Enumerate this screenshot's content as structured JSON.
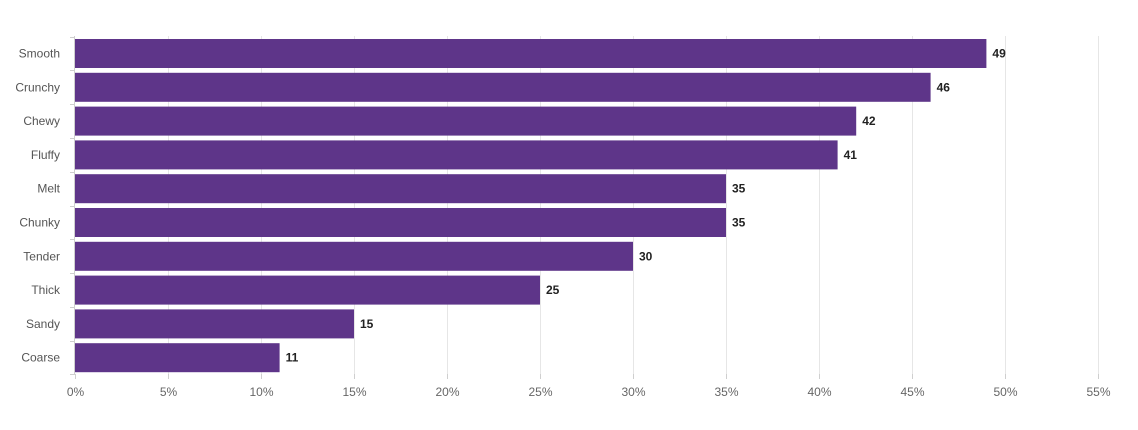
{
  "chart_data": {
    "type": "bar",
    "orientation": "horizontal",
    "title": "",
    "xlabel": "",
    "ylabel": "",
    "categories": [
      "Smooth",
      "Crunchy",
      "Chewy",
      "Fluffy",
      "Melt",
      "Chunky",
      "Tender",
      "Thick",
      "Sandy",
      "Coarse"
    ],
    "values": [
      49,
      46,
      42,
      41,
      35,
      35,
      30,
      25,
      15,
      11
    ],
    "xlim": [
      0,
      55
    ],
    "x_ticks": [
      0,
      5,
      10,
      15,
      20,
      25,
      30,
      35,
      40,
      45,
      50,
      55
    ],
    "x_tick_labels": [
      "0%",
      "5%",
      "10%",
      "15%",
      "20%",
      "25%",
      "30%",
      "35%",
      "40%",
      "45%",
      "50%",
      "55%"
    ],
    "grid": true,
    "bar_color": "#5e3589",
    "legend": "none"
  }
}
